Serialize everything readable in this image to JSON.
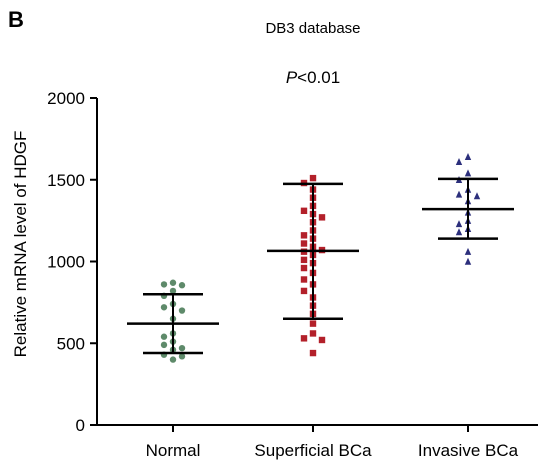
{
  "figure": {
    "panel_label": "B",
    "title": "DB3 database",
    "p_prefix": "P",
    "p_suffix": "<0.01"
  },
  "chart_data": {
    "type": "scatter",
    "title": "DB3 database",
    "annotation": "P<0.01",
    "xlabel": "",
    "ylabel": "Relative mRNA level of HDGF",
    "ylim": [
      0,
      2000
    ],
    "yticks": [
      0,
      500,
      1000,
      1500,
      2000
    ],
    "categories": [
      "Normal",
      "Superficial BCa",
      "Invasive BCa"
    ],
    "grid": false,
    "legend": "none",
    "groups": [
      {
        "category": "Normal",
        "color": "#5e8a6a",
        "marker": "circle",
        "mean": 620,
        "sd_upper": 800,
        "sd_lower": 440,
        "points": [
          870,
          860,
          855,
          820,
          790,
          740,
          720,
          700,
          650,
          560,
          540,
          510,
          490,
          470,
          460,
          430,
          420,
          400
        ]
      },
      {
        "category": "Superficial BCa",
        "color": "#b3202a",
        "marker": "square",
        "mean": 1065,
        "sd_upper": 1475,
        "sd_lower": 650,
        "points": [
          1510,
          1480,
          1440,
          1390,
          1340,
          1310,
          1290,
          1270,
          1240,
          1190,
          1160,
          1140,
          1110,
          1090,
          1070,
          1060,
          1040,
          1010,
          990,
          960,
          930,
          890,
          860,
          820,
          780,
          730,
          680,
          620,
          560,
          530,
          520,
          440
        ]
      },
      {
        "category": "Invasive BCa",
        "color": "#2c2f7c",
        "marker": "triangle",
        "mean": 1320,
        "sd_upper": 1505,
        "sd_lower": 1140,
        "points": [
          1640,
          1610,
          1540,
          1500,
          1440,
          1410,
          1400,
          1370,
          1300,
          1250,
          1230,
          1200,
          1180,
          1060,
          1000
        ]
      }
    ]
  }
}
